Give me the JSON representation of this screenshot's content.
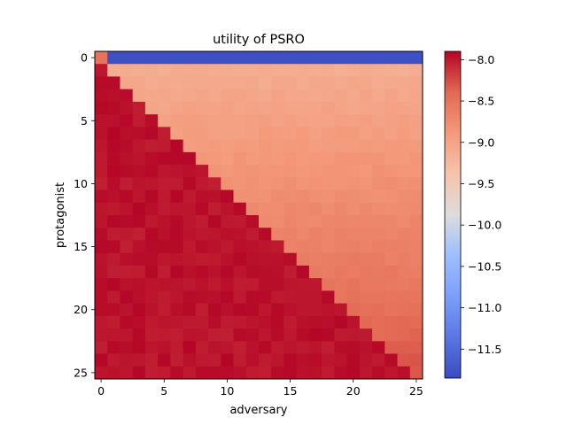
{
  "chart_data": {
    "type": "heatmap",
    "title": "utility of PSRO",
    "xlabel": "adversary",
    "ylabel": "protagonist",
    "x_ticks": [
      0,
      5,
      10,
      15,
      20,
      25
    ],
    "y_ticks": [
      0,
      5,
      10,
      15,
      20,
      25
    ],
    "rows": 26,
    "cols": 26,
    "colormap": "coolwarm",
    "vmin": -11.85,
    "vmax": -7.9,
    "colorbar_ticks": [
      -8.0,
      -8.5,
      -9.0,
      -9.5,
      -10.0,
      -10.5,
      -11.0,
      -11.5
    ],
    "colorbar_tick_labels": [
      "−8.0",
      "−8.5",
      "−9.0",
      "−9.5",
      "−10.0",
      "−10.5",
      "−11.0",
      "−11.5"
    ],
    "pattern": {
      "row0": {
        "col0": -8.5,
        "rest": -11.8
      },
      "upper_triangle_row1_value": -9.1,
      "upper_triangle_near_bottom_value": -8.3,
      "diagonal_and_lower_value": -7.95
    },
    "grid": false,
    "legend": "colorbar-right"
  }
}
